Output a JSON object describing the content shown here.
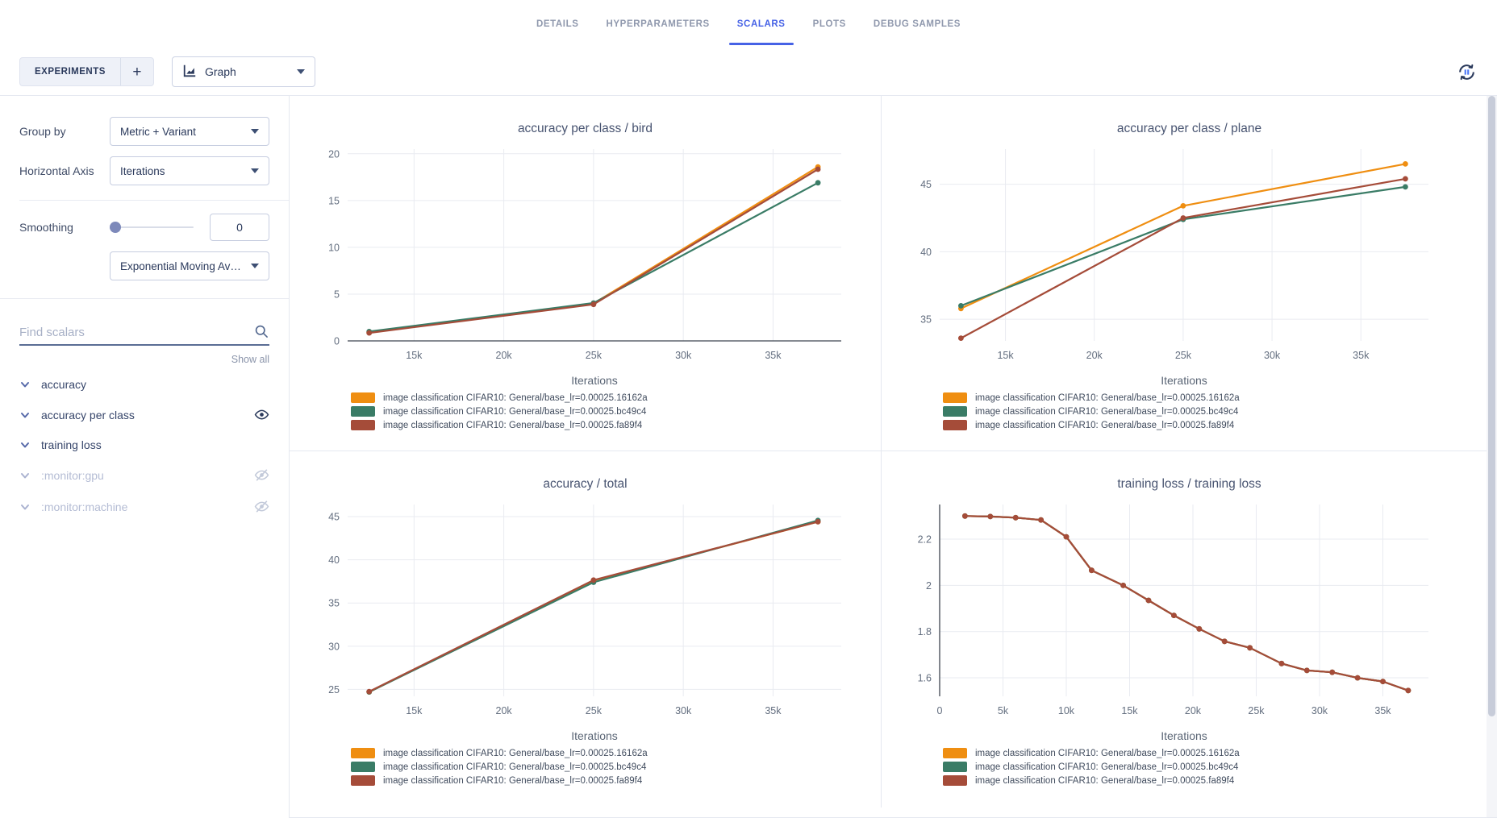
{
  "tabs": {
    "items": [
      {
        "label": "DETAILS",
        "active": false
      },
      {
        "label": "HYPERPARAMETERS",
        "active": false
      },
      {
        "label": "SCALARS",
        "active": true
      },
      {
        "label": "PLOTS",
        "active": false
      },
      {
        "label": "DEBUG SAMPLES",
        "active": false
      }
    ]
  },
  "toolbar": {
    "experiments_label": "EXPERIMENTS",
    "add_label": "+",
    "view_selector_value": "Graph",
    "icons": {
      "view": "area-chart-icon",
      "refresh": "auto-refresh-pause-icon"
    }
  },
  "sidebar": {
    "group_by": {
      "label": "Group by",
      "value": "Metric + Variant"
    },
    "horizontal_axis": {
      "label": "Horizontal Axis",
      "value": "Iterations"
    },
    "smoothing": {
      "label": "Smoothing",
      "value": "0",
      "method": "Exponential Moving Ave..."
    },
    "search": {
      "placeholder": "Find scalars"
    },
    "show_all": "Show all",
    "metrics": [
      {
        "label": "accuracy",
        "eye": "none",
        "muted": false
      },
      {
        "label": "accuracy per class",
        "eye": "visible",
        "muted": false
      },
      {
        "label": "training loss",
        "eye": "none",
        "muted": false
      },
      {
        "label": ":monitor:gpu",
        "eye": "hidden",
        "muted": true
      },
      {
        "label": ":monitor:machine",
        "eye": "hidden",
        "muted": true
      }
    ]
  },
  "colors": {
    "accent": "#4662e6",
    "series_orange": "#ef8e11",
    "series_teal": "#3a7c66",
    "series_red": "#a54c39",
    "grid": "#e9ebf1",
    "zeroline": "#3f4650",
    "tick_text": "#636e7f",
    "axis_label_text": "#5a6575"
  },
  "chart_data": [
    {
      "type": "line",
      "title": "accuracy per class / bird",
      "xlabel": "Iterations",
      "x": [
        12500,
        25000,
        37500
      ],
      "series": [
        {
          "name": "image classification CIFAR10: General/base_lr=0.00025.16162a",
          "color": "#ef8e11",
          "values": [
            0.9,
            4.0,
            18.6
          ]
        },
        {
          "name": "image classification CIFAR10: General/base_lr=0.00025.bc49c4",
          "color": "#3a7c66",
          "values": [
            1.0,
            4.05,
            16.9
          ]
        },
        {
          "name": "image classification CIFAR10: General/base_lr=0.00025.fa89f4",
          "color": "#a54c39",
          "values": [
            0.85,
            3.9,
            18.35
          ]
        }
      ],
      "xticks": [
        15000,
        20000,
        25000,
        30000,
        35000
      ],
      "xtick_labels": [
        "15k",
        "20k",
        "25k",
        "30k",
        "35k"
      ],
      "yticks": [
        0,
        5,
        10,
        15,
        20
      ],
      "ytick_labels": [
        "0",
        "5",
        "10",
        "15",
        "20"
      ],
      "xlim": [
        11300,
        38800
      ],
      "ylim": [
        0,
        20.5
      ],
      "zeroline": "y",
      "grid": true,
      "legend_position": "bottom-left"
    },
    {
      "type": "line",
      "title": "accuracy per class / plane",
      "xlabel": "Iterations",
      "x": [
        12500,
        25000,
        37500
      ],
      "series": [
        {
          "name": "image classification CIFAR10: General/base_lr=0.00025.16162a",
          "color": "#ef8e11",
          "values": [
            35.8,
            43.4,
            46.5
          ]
        },
        {
          "name": "image classification CIFAR10: General/base_lr=0.00025.bc49c4",
          "color": "#3a7c66",
          "values": [
            36.0,
            42.4,
            44.8
          ]
        },
        {
          "name": "image classification CIFAR10: General/base_lr=0.00025.fa89f4",
          "color": "#a54c39",
          "values": [
            33.6,
            42.5,
            45.4
          ]
        }
      ],
      "xticks": [
        15000,
        20000,
        25000,
        30000,
        35000
      ],
      "xtick_labels": [
        "15k",
        "20k",
        "25k",
        "30k",
        "35k"
      ],
      "yticks": [
        35,
        40,
        45
      ],
      "ytick_labels": [
        "35",
        "40",
        "45"
      ],
      "xlim": [
        11300,
        38800
      ],
      "ylim": [
        33.4,
        47.6
      ],
      "zeroline": "none",
      "grid": true,
      "legend_position": "bottom-left"
    },
    {
      "type": "line",
      "title": "accuracy / total",
      "xlabel": "Iterations",
      "x": [
        12500,
        25000,
        37500
      ],
      "series": [
        {
          "name": "image classification CIFAR10: General/base_lr=0.00025.16162a",
          "color": "#ef8e11",
          "values": [
            24.7,
            37.6,
            44.4
          ]
        },
        {
          "name": "image classification CIFAR10: General/base_lr=0.00025.bc49c4",
          "color": "#3a7c66",
          "values": [
            24.7,
            37.4,
            44.55
          ]
        },
        {
          "name": "image classification CIFAR10: General/base_lr=0.00025.fa89f4",
          "color": "#a54c39",
          "values": [
            24.75,
            37.65,
            44.4
          ]
        }
      ],
      "xticks": [
        15000,
        20000,
        25000,
        30000,
        35000
      ],
      "xtick_labels": [
        "15k",
        "20k",
        "25k",
        "30k",
        "35k"
      ],
      "yticks": [
        25,
        30,
        35,
        40,
        45
      ],
      "ytick_labels": [
        "25",
        "30",
        "35",
        "40",
        "45"
      ],
      "xlim": [
        11300,
        38800
      ],
      "ylim": [
        24.2,
        46.4
      ],
      "zeroline": "none",
      "grid": true,
      "legend_position": "bottom-left"
    },
    {
      "type": "line",
      "title": "training loss / training loss",
      "xlabel": "Iterations",
      "x": [
        2000,
        4000,
        6000,
        8000,
        10000,
        12000,
        14500,
        16500,
        18500,
        20500,
        22500,
        24500,
        27000,
        29000,
        31000,
        33000,
        35000,
        37000
      ],
      "series": [
        {
          "name": "image classification CIFAR10: General/base_lr=0.00025.16162a",
          "color": "#ef8e11",
          "values": [
            2.3,
            2.298,
            2.293,
            2.283,
            2.21,
            2.065,
            2.0,
            1.935,
            1.87,
            1.812,
            1.758,
            1.73,
            1.662,
            1.632,
            1.624,
            1.6,
            1.584,
            1.545
          ]
        },
        {
          "name": "image classification CIFAR10: General/base_lr=0.00025.bc49c4",
          "color": "#3a7c66",
          "values": [
            2.3,
            2.298,
            2.293,
            2.283,
            2.21,
            2.065,
            2.0,
            1.935,
            1.87,
            1.812,
            1.758,
            1.73,
            1.662,
            1.632,
            1.624,
            1.6,
            1.584,
            1.545
          ]
        },
        {
          "name": "image classification CIFAR10: General/base_lr=0.00025.fa89f4",
          "color": "#a54c39",
          "values": [
            2.3,
            2.298,
            2.293,
            2.283,
            2.21,
            2.065,
            2.0,
            1.935,
            1.87,
            1.812,
            1.758,
            1.73,
            1.662,
            1.632,
            1.624,
            1.6,
            1.584,
            1.545
          ]
        }
      ],
      "xticks": [
        0,
        5000,
        10000,
        15000,
        20000,
        25000,
        30000,
        35000
      ],
      "xtick_labels": [
        "0",
        "5k",
        "10k",
        "15k",
        "20k",
        "25k",
        "30k",
        "35k"
      ],
      "yticks": [
        1.6,
        1.8,
        2.0,
        2.2
      ],
      "ytick_labels": [
        "1.6",
        "1.8",
        "2",
        "2.2"
      ],
      "xlim": [
        0,
        38600
      ],
      "ylim": [
        1.52,
        2.35
      ],
      "zeroline": "x",
      "grid": true,
      "legend_position": "bottom-left"
    }
  ]
}
